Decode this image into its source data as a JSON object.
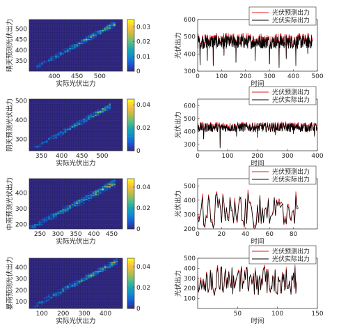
{
  "colors": {
    "predicted": "#e8141b",
    "actual": "#000000",
    "colormap": "parula"
  },
  "chart_data": [
    {
      "id": "heatmap-sunny",
      "type": "heatmap",
      "xlabel": "实际光伏出力",
      "ylabel": "晴天预测光伏出力",
      "xlim": [
        345,
        550
      ],
      "ylim": [
        300,
        545
      ],
      "xticks": [
        400,
        450,
        500
      ],
      "yticks": [
        350,
        400,
        450,
        500
      ],
      "grid_size": 40,
      "diag_range": [
        360,
        535
      ],
      "spread": 3.2,
      "colorbar_ticks": [
        0,
        0.01,
        0.02,
        0.03
      ],
      "colorbar_max": 0.035
    },
    {
      "id": "line-sunny",
      "type": "line",
      "xlabel": "时间",
      "ylabel": "光伏出力",
      "xlim": [
        0,
        500
      ],
      "ylim": [
        300,
        600
      ],
      "xticks": [
        0,
        100,
        200,
        300,
        400,
        500
      ],
      "yticks": [
        300,
        400,
        500,
        600
      ],
      "n_points": 480,
      "base": 470,
      "amplitude": 40,
      "dips": [
        [
          10,
          335
        ],
        [
          40,
          360
        ],
        [
          65,
          330
        ],
        [
          110,
          390
        ],
        [
          160,
          350
        ],
        [
          240,
          360
        ],
        [
          300,
          340
        ],
        [
          340,
          320
        ],
        [
          370,
          370
        ],
        [
          410,
          330
        ],
        [
          460,
          400
        ]
      ],
      "series": [
        {
          "name": "光伏预测出力",
          "color": "#e8141b"
        },
        {
          "name": "光伏实际出力",
          "color": "#000000"
        }
      ]
    },
    {
      "id": "heatmap-cloudy",
      "type": "heatmap",
      "xlabel": "实际光伏出力",
      "ylabel": "阴天预测光伏出力",
      "xlim": [
        320,
        550
      ],
      "ylim": [
        240,
        510
      ],
      "xticks": [
        350,
        400,
        450,
        500
      ],
      "yticks": [
        300,
        400,
        500
      ],
      "grid_size": 40,
      "diag_range": [
        330,
        520
      ],
      "spread": 3.0,
      "colorbar_ticks": [
        0,
        0.02,
        0.04
      ],
      "colorbar_max": 0.045
    },
    {
      "id": "line-cloudy",
      "type": "line",
      "xlabel": "时间",
      "ylabel": "光伏出力",
      "xlim": [
        0,
        400
      ],
      "ylim": [
        250,
        650
      ],
      "xticks": [
        0,
        100,
        200,
        300,
        400
      ],
      "yticks": [
        300,
        400,
        500,
        600
      ],
      "n_points": 400,
      "base": 430,
      "amplitude": 35,
      "dips": [
        [
          20,
          340
        ],
        [
          75,
          270
        ],
        [
          130,
          360
        ],
        [
          200,
          350
        ],
        [
          260,
          370
        ],
        [
          320,
          380
        ],
        [
          390,
          360
        ]
      ],
      "series": [
        {
          "name": "光伏预测出力",
          "color": "#e8141b"
        },
        {
          "name": "光伏实际出力",
          "color": "#000000"
        }
      ]
    },
    {
      "id": "heatmap-light-rain",
      "type": "heatmap",
      "xlabel": "实际光伏出力",
      "ylabel": "中雨预测光伏出力",
      "xlim": [
        220,
        480
      ],
      "ylim": [
        170,
        490
      ],
      "xticks": [
        250,
        300,
        350,
        400,
        450
      ],
      "yticks": [
        200,
        300,
        400
      ],
      "grid_size": 40,
      "diag_range": [
        210,
        460
      ],
      "spread": 5.5,
      "colorbar_ticks": [
        0,
        0.02,
        0.04
      ],
      "colorbar_max": 0.048
    },
    {
      "id": "line-light-rain",
      "type": "line",
      "xlabel": "时间",
      "ylabel": "光伏出力",
      "xlim": [
        0,
        100
      ],
      "ylim": [
        200,
        550
      ],
      "xticks": [
        0,
        20,
        40,
        60,
        80
      ],
      "yticks": [
        200,
        300,
        400,
        500
      ],
      "n_points": 85,
      "base": 340,
      "amplitude": 110,
      "dips": [],
      "series": [
        {
          "name": "光伏预测出力",
          "color": "#e8141b"
        },
        {
          "name": "光伏实际出力",
          "color": "#000000"
        }
      ]
    },
    {
      "id": "heatmap-heavy-rain",
      "type": "heatmap",
      "xlabel": "实际光伏出力",
      "ylabel": "暴雨预测光伏出力",
      "xlim": [
        40,
        480
      ],
      "ylim": [
        40,
        480
      ],
      "xticks": [
        100,
        200,
        300,
        400
      ],
      "yticks": [
        100,
        200,
        300,
        400
      ],
      "grid_size": 40,
      "diag_range": [
        60,
        460
      ],
      "spread": 4.0,
      "colorbar_ticks": [
        0,
        0.02,
        0.04
      ],
      "colorbar_max": 0.048
    },
    {
      "id": "line-heavy-rain",
      "type": "line",
      "xlabel": "时间",
      "ylabel": "光伏出力",
      "xlim": [
        0,
        150
      ],
      "ylim": [
        0,
        500
      ],
      "xticks": [
        50,
        100,
        150
      ],
      "yticks": [
        100,
        200,
        300,
        400,
        500
      ],
      "n_points": 125,
      "base": 300,
      "amplitude": 120,
      "dips": [],
      "series": [
        {
          "name": "光伏预测出力",
          "color": "#e8141b"
        },
        {
          "name": "光伏实际出力",
          "color": "#000000"
        }
      ]
    }
  ]
}
